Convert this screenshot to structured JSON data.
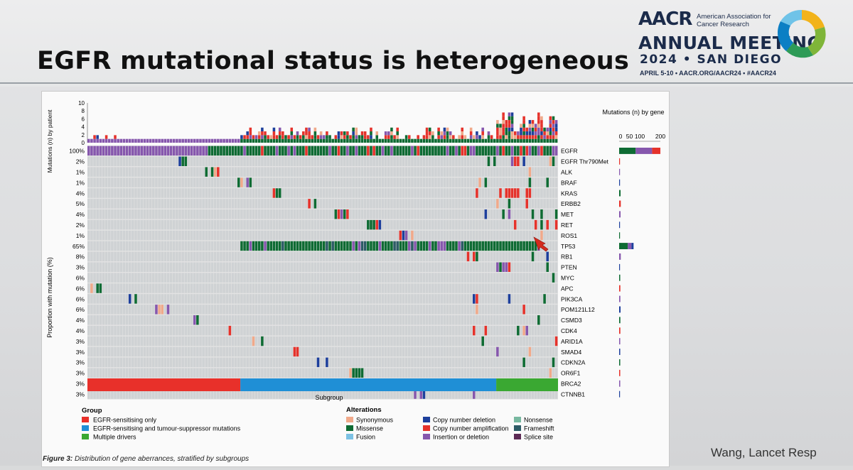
{
  "slide": {
    "title": "EGFR mutational status is heterogeneous",
    "credit": "Wang, Lancet Resp",
    "caption_lead": "Figure 3:",
    "caption_text": " Distribution of gene aberrances, stratified by subgroups"
  },
  "logo": {
    "org": "AACR",
    "org_full": "American Association for Cancer Research",
    "meeting": "ANNUAL MEETING",
    "year_city": "2024 • SAN DIEGO",
    "dates": "APRIL 5-10 • AACR.ORG/AACR24 • #AACR24",
    "colors": [
      "#0b7fc4",
      "#f2b31b",
      "#7fb539",
      "#2e9b57",
      "#1b2b4a"
    ]
  },
  "chart_data": {
    "type": "heatmap",
    "title": "",
    "top_axis_label": "Mutations (n) by patient",
    "top_axis_ticks": [
      "10",
      "8",
      "6",
      "4",
      "2",
      "0"
    ],
    "ylabel": "Proportion with mutation (%)",
    "xlabel": "Subgroup",
    "right_title": "Mutations (n) by gene",
    "right_axis_ticks": [
      "0",
      "50",
      "100",
      "200"
    ],
    "genes": [
      "EGFR",
      "EGFR Thr790Met",
      "ALK",
      "BRAF",
      "KRAS",
      "ERBB2",
      "MET",
      "RET",
      "ROS1",
      "TP53",
      "RB1",
      "PTEN",
      "MYC",
      "APC",
      "PIK3CA",
      "POM121L12",
      "CSMD3",
      "CDK4",
      "ARID1A",
      "SMAD4",
      "CDKN2A",
      "OR6F1",
      "BRCA2",
      "CTNNB1"
    ],
    "proportions": [
      "100%",
      "2%",
      "1%",
      "1%",
      "4%",
      "5%",
      "4%",
      "2%",
      "1%",
      "65%",
      "8%",
      "3%",
      "6%",
      "6%",
      "6%",
      "6%",
      "4%",
      "4%",
      "3%",
      "3%",
      "3%",
      "3%",
      "3%",
      "3%"
    ],
    "gene_totals": [
      200,
      3,
      2,
      2,
      7,
      8,
      7,
      3,
      2,
      70,
      8,
      4,
      5,
      6,
      6,
      7,
      6,
      6,
      5,
      5,
      5,
      5,
      5,
      4
    ],
    "patients_total": 160,
    "subgroups": [
      {
        "name": "EGFR-sensitising only",
        "color": "#e8302a",
        "count": 52
      },
      {
        "name": "EGFR-sensitising and tumour-suppressor mutations",
        "color": "#1f8fd6",
        "count": 87
      },
      {
        "name": "Multiple drivers",
        "color": "#3aa832",
        "count": 21
      }
    ],
    "group_legend_title": "Group",
    "alterations_legend_title": "Alterations",
    "alterations": [
      {
        "name": "Synonymous",
        "color": "#f0a98a"
      },
      {
        "name": "Missense",
        "color": "#0e6b33"
      },
      {
        "name": "Fusion",
        "color": "#7cc1e4"
      },
      {
        "name": "Copy number deletion",
        "color": "#1d3f9c"
      },
      {
        "name": "Copy number amplification",
        "color": "#e5322b"
      },
      {
        "name": "Insertion or deletion",
        "color": "#8657ad"
      },
      {
        "name": "Nonsense",
        "color": "#77b8a0"
      },
      {
        "name": "Frameshift",
        "color": "#2d5b66"
      },
      {
        "name": "Splice site",
        "color": "#5c2a55"
      }
    ]
  }
}
